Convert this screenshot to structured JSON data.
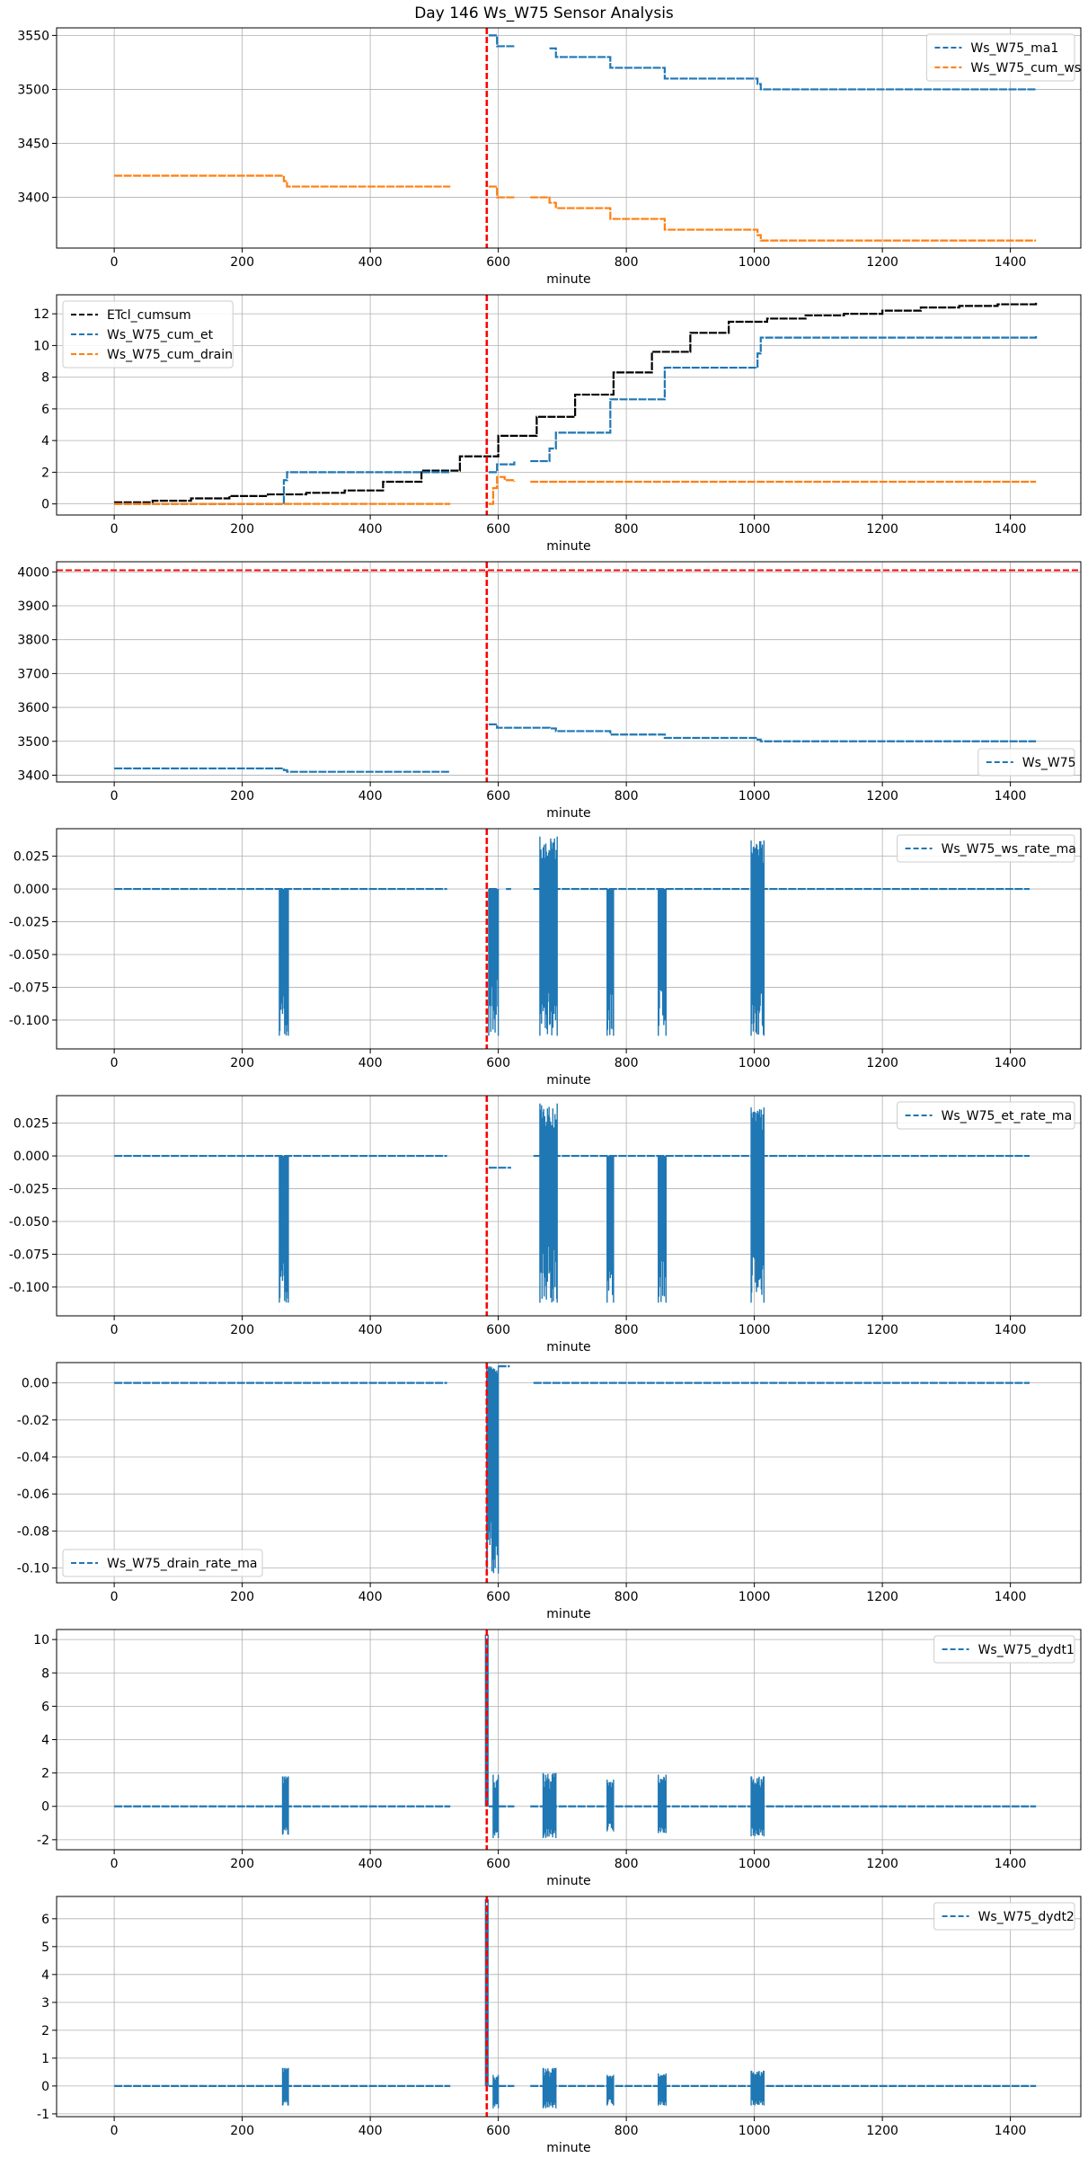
{
  "title": "Day 146 Ws_W75 Sensor Analysis",
  "colors": {
    "blue": "#1f77b4",
    "orange": "#ff7f0e",
    "black": "#000000",
    "red": "#ff0000",
    "grid": "#b0b0b0"
  },
  "chart_data": [
    {
      "type": "line",
      "xlabel": "minute",
      "xlim": [
        -90,
        1510
      ],
      "ylim": [
        3353,
        3557
      ],
      "xticks": [
        0,
        200,
        400,
        600,
        800,
        1000,
        1200,
        1400
      ],
      "yticks": [
        3400,
        3450,
        3500,
        3550
      ],
      "ytick_labels": [
        "3400",
        "3450",
        "3500",
        "3550"
      ],
      "grid": true,
      "legend": "top-right",
      "vlines": [
        582
      ],
      "hlines": [],
      "series": [
        {
          "name": "Ws_W75_ma1",
          "color": "blue",
          "kind": "step",
          "x": [
            585,
            598,
            625,
            680,
            690,
            775,
            860,
            1005,
            1010,
            1440
          ],
          "y": [
            3550,
            3540,
            3540,
            3538,
            3530,
            3520,
            3510,
            3505,
            3500,
            3500
          ],
          "segments": [
            [
              585,
              625
            ],
            [
              650,
              1440
            ]
          ]
        },
        {
          "name": "Ws_W75_cum_ws",
          "color": "orange",
          "kind": "step",
          "x": [
            0,
            265,
            270,
            525,
            585,
            598,
            625,
            650,
            680,
            690,
            775,
            860,
            1005,
            1010,
            1440
          ],
          "y": [
            3420,
            3415,
            3410,
            3410,
            3410,
            3400,
            3400,
            3400,
            3395,
            3390,
            3380,
            3370,
            3365,
            3360,
            3360
          ],
          "segments": [
            [
              0,
              525
            ],
            [
              585,
              625
            ],
            [
              650,
              1440
            ]
          ]
        }
      ]
    },
    {
      "type": "line",
      "xlabel": "minute",
      "xlim": [
        -90,
        1510
      ],
      "ylim": [
        -0.7,
        13.2
      ],
      "xticks": [
        0,
        200,
        400,
        600,
        800,
        1000,
        1200,
        1400
      ],
      "yticks": [
        0,
        2,
        4,
        6,
        8,
        10,
        12
      ],
      "ytick_labels": [
        "0",
        "2",
        "4",
        "6",
        "8",
        "10",
        "12"
      ],
      "grid": true,
      "legend": "top-left",
      "vlines": [
        582
      ],
      "hlines": [],
      "series": [
        {
          "name": "ETcl_cumsum",
          "color": "black",
          "kind": "step",
          "x": [
            0,
            60,
            120,
            180,
            240,
            300,
            360,
            420,
            480,
            540,
            600,
            660,
            720,
            780,
            840,
            900,
            960,
            1020,
            1080,
            1140,
            1200,
            1260,
            1320,
            1380,
            1440
          ],
          "y": [
            0.1,
            0.2,
            0.35,
            0.5,
            0.6,
            0.7,
            0.85,
            1.4,
            2.1,
            3.0,
            4.3,
            5.5,
            6.9,
            8.3,
            9.6,
            10.8,
            11.5,
            11.7,
            11.9,
            12.0,
            12.2,
            12.4,
            12.5,
            12.6,
            12.7
          ],
          "segments": [
            [
              0,
              1440
            ]
          ]
        },
        {
          "name": "Ws_W75_cum_et",
          "color": "blue",
          "kind": "step",
          "x": [
            0,
            265,
            270,
            525,
            585,
            598,
            625,
            650,
            680,
            690,
            775,
            860,
            1005,
            1010,
            1440
          ],
          "y": [
            0,
            1.5,
            2.0,
            2.0,
            2.0,
            2.5,
            2.7,
            2.7,
            3.5,
            4.5,
            6.6,
            8.6,
            9.5,
            10.5,
            10.6
          ],
          "segments": [
            [
              0,
              525
            ],
            [
              585,
              625
            ],
            [
              650,
              1440
            ]
          ]
        },
        {
          "name": "Ws_W75_cum_drain",
          "color": "orange",
          "kind": "step",
          "x": [
            0,
            525,
            585,
            592,
            598,
            610,
            625,
            650,
            1440
          ],
          "y": [
            0,
            0,
            0,
            1.0,
            1.7,
            1.5,
            1.4,
            1.4,
            1.4
          ],
          "segments": [
            [
              0,
              525
            ],
            [
              585,
              625
            ],
            [
              650,
              1440
            ]
          ]
        }
      ]
    },
    {
      "type": "line",
      "xlabel": "minute",
      "xlim": [
        -90,
        1510
      ],
      "ylim": [
        3380,
        4030
      ],
      "xticks": [
        0,
        200,
        400,
        600,
        800,
        1000,
        1200,
        1400
      ],
      "yticks": [
        3400,
        3500,
        3600,
        3700,
        3800,
        3900,
        4000
      ],
      "ytick_labels": [
        "3400",
        "3500",
        "3600",
        "3700",
        "3800",
        "3900",
        "4000"
      ],
      "grid": true,
      "legend": "bottom-right",
      "vlines": [
        582
      ],
      "hlines": [
        4005
      ],
      "series": [
        {
          "name": "Ws_W75",
          "color": "blue",
          "kind": "step",
          "x": [
            0,
            265,
            270,
            525,
            585,
            598,
            625,
            680,
            690,
            775,
            860,
            1005,
            1010,
            1440
          ],
          "y": [
            3420,
            3415,
            3410,
            3410,
            3550,
            3540,
            3540,
            3538,
            3530,
            3520,
            3510,
            3505,
            3500,
            3500
          ],
          "segments": [
            [
              0,
              525
            ],
            [
              585,
              1440
            ]
          ]
        }
      ]
    },
    {
      "type": "line",
      "xlabel": "minute",
      "xlim": [
        -90,
        1510
      ],
      "ylim": [
        -0.122,
        0.046
      ],
      "xticks": [
        0,
        200,
        400,
        600,
        800,
        1000,
        1200,
        1400
      ],
      "yticks": [
        -0.1,
        -0.075,
        -0.05,
        -0.025,
        0.0,
        0.025
      ],
      "ytick_labels": [
        "-0.100",
        "-0.075",
        "-0.050",
        "-0.025",
        "0.000",
        "0.025"
      ],
      "grid": true,
      "legend": "top-right",
      "vlines": [
        582
      ],
      "hlines": [],
      "series": [
        {
          "name": "Ws_W75_ws_rate_ma",
          "color": "blue",
          "kind": "spiky",
          "baseline": 0.0,
          "segments": [
            [
              0,
              520
            ],
            [
              585,
              600
            ],
            [
              612,
              620
            ],
            [
              655,
              1430
            ]
          ],
          "spikes": [
            [
              258,
              272,
              -0.112,
              0
            ],
            [
              585,
              600,
              -0.112,
              0
            ],
            [
              665,
              692,
              -0.112,
              0.04
            ],
            [
              770,
              780,
              -0.112,
              0
            ],
            [
              850,
              862,
              -0.112,
              0
            ],
            [
              995,
              1015,
              -0.112,
              0.037
            ]
          ]
        }
      ]
    },
    {
      "type": "line",
      "xlabel": "minute",
      "xlim": [
        -90,
        1510
      ],
      "ylim": [
        -0.122,
        0.046
      ],
      "xticks": [
        0,
        200,
        400,
        600,
        800,
        1000,
        1200,
        1400
      ],
      "yticks": [
        -0.1,
        -0.075,
        -0.05,
        -0.025,
        0.0,
        0.025
      ],
      "ytick_labels": [
        "-0.100",
        "-0.075",
        "-0.050",
        "-0.025",
        "0.000",
        "0.025"
      ],
      "grid": true,
      "legend": "top-right",
      "vlines": [
        582
      ],
      "hlines": [],
      "series": [
        {
          "name": "Ws_W75_et_rate_ma",
          "color": "blue",
          "kind": "spiky",
          "baseline": 0.0,
          "segments": [
            [
              0,
              520
            ],
            [
              655,
              1430
            ]
          ],
          "extra_lines": [
            [
              585,
              620,
              -0.009
            ]
          ],
          "spikes": [
            [
              258,
              272,
              -0.112,
              0
            ],
            [
              665,
              692,
              -0.112,
              0.04
            ],
            [
              770,
              780,
              -0.112,
              0
            ],
            [
              850,
              862,
              -0.112,
              0
            ],
            [
              995,
              1015,
              -0.112,
              0.037
            ]
          ]
        }
      ]
    },
    {
      "type": "line",
      "xlabel": "minute",
      "xlim": [
        -90,
        1510
      ],
      "ylim": [
        -0.108,
        0.011
      ],
      "xticks": [
        0,
        200,
        400,
        600,
        800,
        1000,
        1200,
        1400
      ],
      "yticks": [
        -0.1,
        -0.08,
        -0.06,
        -0.04,
        -0.02,
        0.0
      ],
      "ytick_labels": [
        "-0.10",
        "-0.08",
        "-0.06",
        "-0.04",
        "-0.02",
        "0.00"
      ],
      "grid": true,
      "legend": "bottom-left",
      "vlines": [
        582
      ],
      "hlines": [],
      "series": [
        {
          "name": "Ws_W75_drain_rate_ma",
          "color": "blue",
          "kind": "spiky",
          "baseline": 0.0,
          "segments": [
            [
              0,
              520
            ],
            [
              655,
              1430
            ]
          ],
          "extra_lines": [
            [
              600,
              618,
              0.009
            ]
          ],
          "spikes": [
            [
              582,
              600,
              -0.103,
              0.009
            ]
          ]
        }
      ]
    },
    {
      "type": "line",
      "xlabel": "minute",
      "xlim": [
        -90,
        1510
      ],
      "ylim": [
        -2.6,
        10.6
      ],
      "xticks": [
        0,
        200,
        400,
        600,
        800,
        1000,
        1200,
        1400
      ],
      "yticks": [
        -2,
        0,
        2,
        4,
        6,
        8,
        10
      ],
      "ytick_labels": [
        "-2",
        "0",
        "2",
        "4",
        "6",
        "8",
        "10"
      ],
      "grid": true,
      "legend": "top-right",
      "vlines": [
        582
      ],
      "hlines": [],
      "series": [
        {
          "name": "Ws_W75_dydt1",
          "color": "blue",
          "kind": "spiky",
          "baseline": 0.0,
          "segments": [
            [
              0,
              525
            ],
            [
              585,
              625
            ],
            [
              650,
              1440
            ]
          ],
          "spikes": [
            [
              263,
              272,
              -1.7,
              1.8
            ],
            [
              580,
              584,
              0,
              10.3
            ],
            [
              592,
              600,
              -1.9,
              1.9
            ],
            [
              670,
              690,
              -1.9,
              2.0
            ],
            [
              770,
              780,
              -1.5,
              1.6
            ],
            [
              850,
              862,
              -1.6,
              1.9
            ],
            [
              995,
              1015,
              -1.8,
              1.8
            ]
          ]
        }
      ]
    },
    {
      "type": "line",
      "xlabel": "minute",
      "xlim": [
        -90,
        1510
      ],
      "ylim": [
        -1.1,
        6.8
      ],
      "xticks": [
        0,
        200,
        400,
        600,
        800,
        1000,
        1200,
        1400
      ],
      "yticks": [
        -1,
        0,
        1,
        2,
        3,
        4,
        5,
        6
      ],
      "ytick_labels": [
        "-1",
        "0",
        "1",
        "2",
        "3",
        "4",
        "5",
        "6"
      ],
      "grid": true,
      "legend": "top-right",
      "vlines": [
        582
      ],
      "hlines": [],
      "series": [
        {
          "name": "Ws_W75_dydt2",
          "color": "blue",
          "kind": "spiky",
          "baseline": 0.0,
          "segments": [
            [
              0,
              525
            ],
            [
              585,
              625
            ],
            [
              650,
              1440
            ]
          ],
          "spikes": [
            [
              263,
              272,
              -0.7,
              0.65
            ],
            [
              580,
              584,
              0,
              6.7
            ],
            [
              592,
              600,
              -0.8,
              0.4
            ],
            [
              670,
              690,
              -0.8,
              0.65
            ],
            [
              770,
              780,
              -0.7,
              0.4
            ],
            [
              850,
              862,
              -0.7,
              0.45
            ],
            [
              995,
              1015,
              -0.7,
              0.55
            ]
          ]
        }
      ]
    }
  ]
}
